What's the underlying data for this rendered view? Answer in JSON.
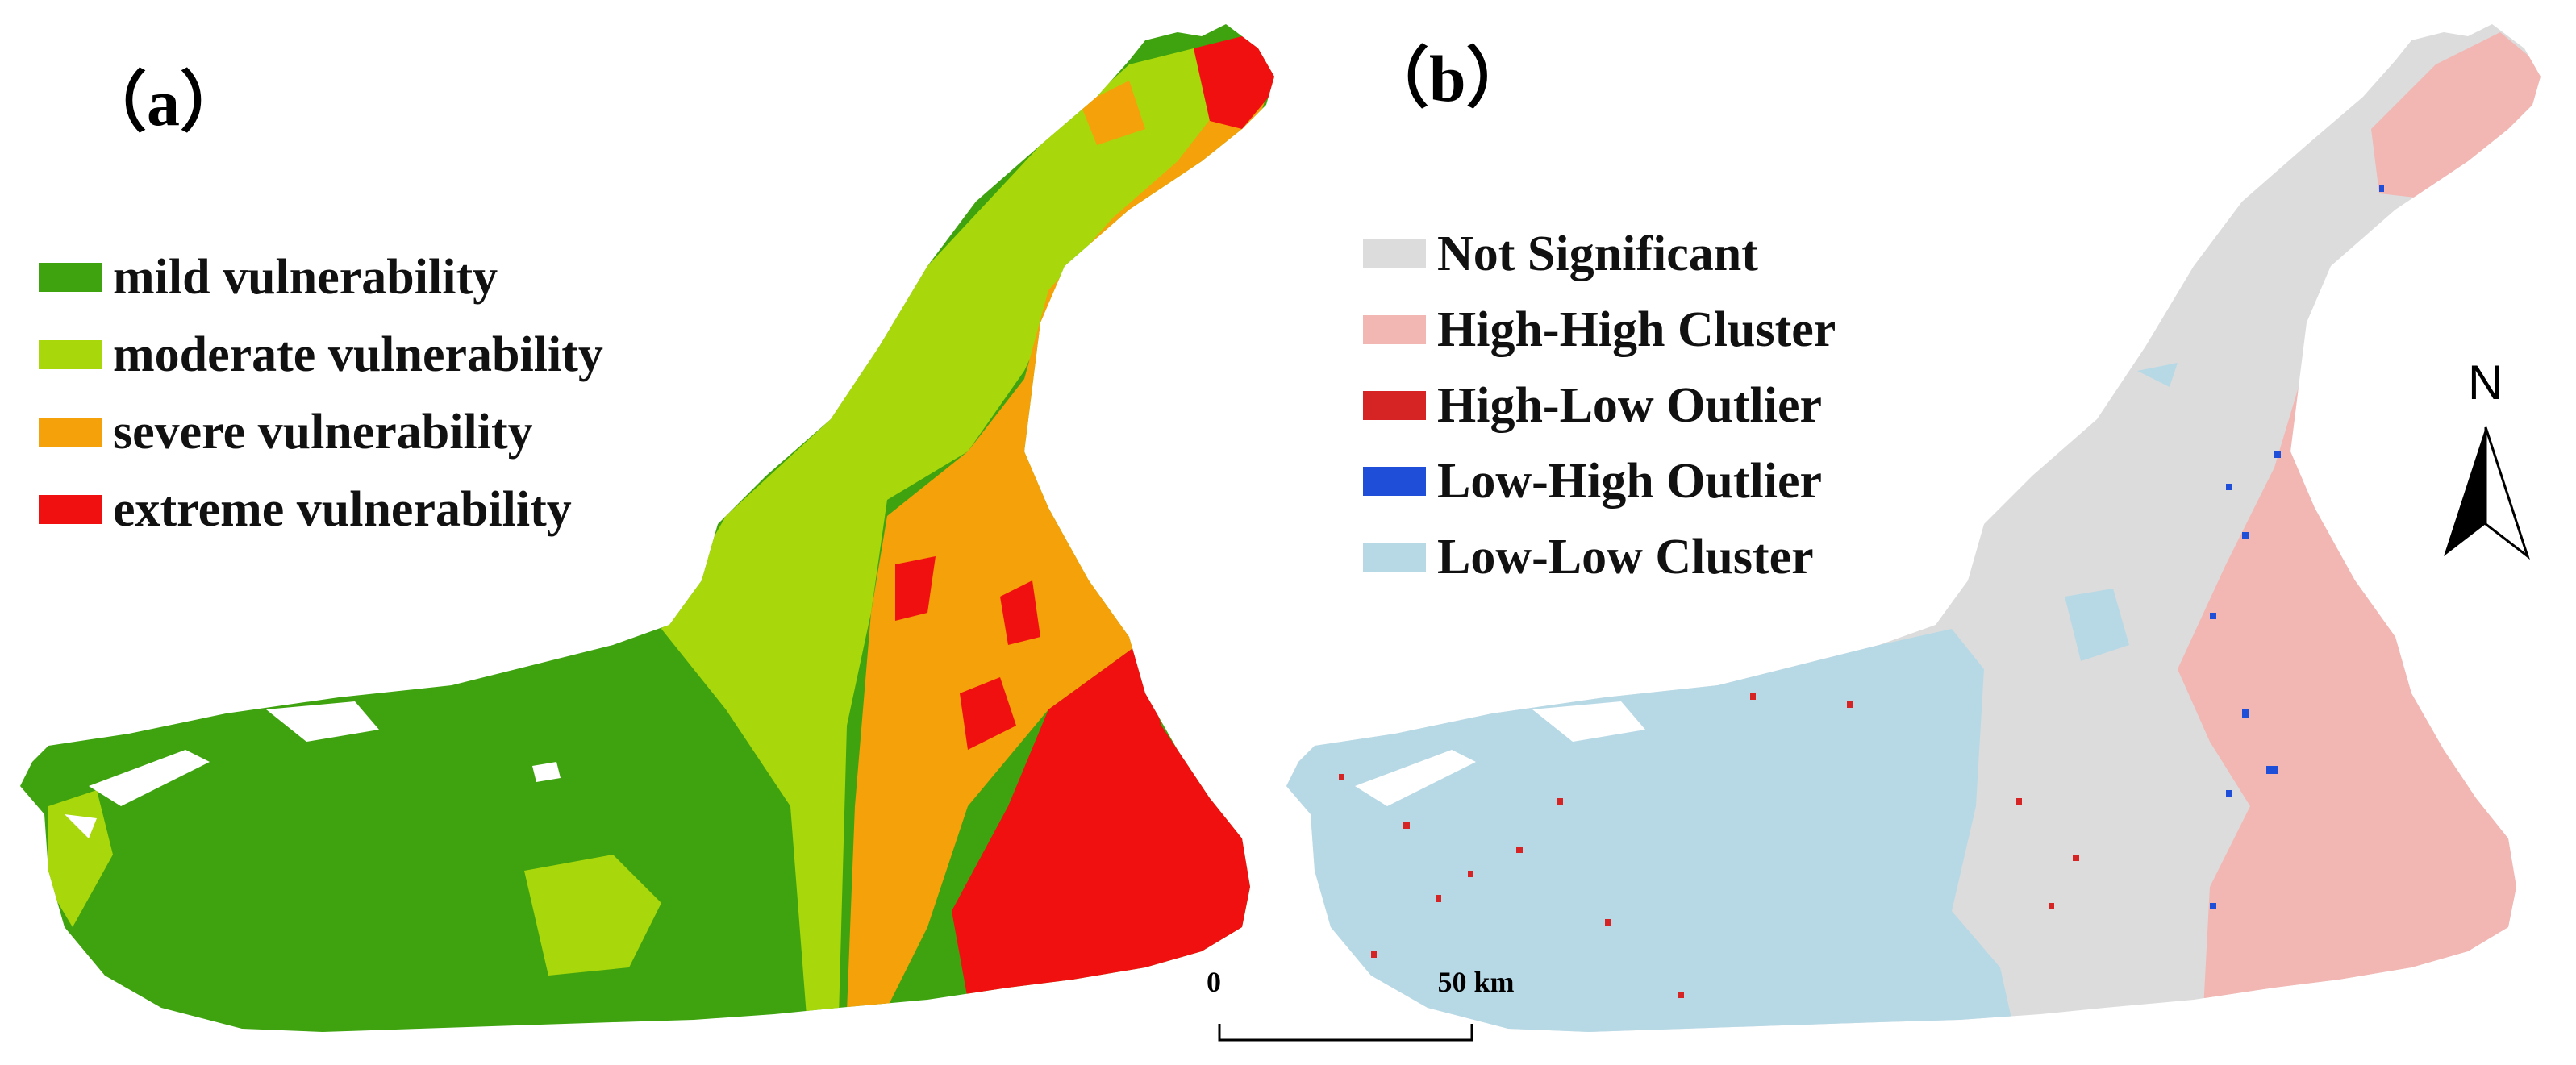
{
  "panel_a": {
    "label": "（a）",
    "legend": [
      {
        "label": "mild vulnerability",
        "color": "#3ea30f"
      },
      {
        "label": "moderate vulnerability",
        "color": "#a8d80c"
      },
      {
        "label": "severe vulnerability",
        "color": "#f5a10a"
      },
      {
        "label": "extreme vulnerability",
        "color": "#f01010"
      }
    ]
  },
  "panel_b": {
    "label": "（b）",
    "legend": [
      {
        "label": "Not Significant",
        "color": "#dcdcdc"
      },
      {
        "label": "High-High Cluster",
        "color": "#f2b6b3"
      },
      {
        "label": "High-Low Outlier",
        "color": "#d62424"
      },
      {
        "label": "Low-High Outlier",
        "color": "#1f4ed8"
      },
      {
        "label": "Low-Low Cluster",
        "color": "#b7d9e6"
      }
    ]
  },
  "scale_bar": {
    "start_label": "0",
    "end_label": "50 km"
  },
  "north_arrow": {
    "label": "N"
  }
}
